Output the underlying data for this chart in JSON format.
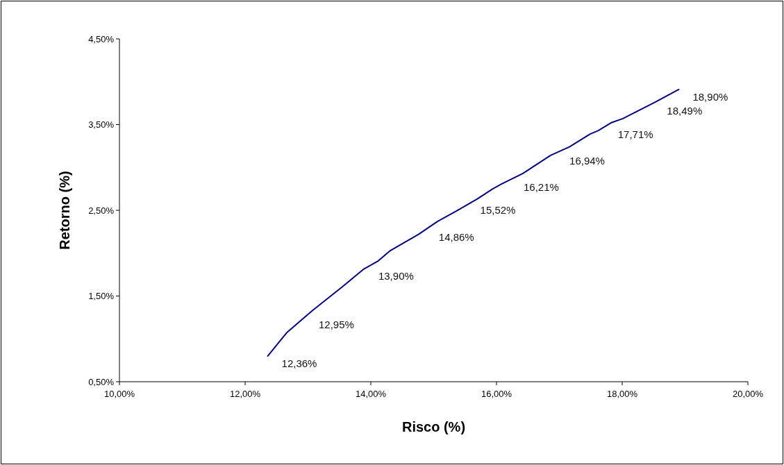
{
  "chart_data": {
    "type": "line",
    "xlabel": "Risco (%)",
    "ylabel": "Retorno (%)",
    "series": [
      {
        "color": "#000080",
        "x": [
          12.36,
          12.66,
          13.07,
          13.55,
          13.88,
          14.12,
          14.31,
          14.76,
          15.06,
          15.36,
          15.69,
          15.94,
          16.09,
          16.42,
          16.86,
          17.16,
          17.49,
          17.62,
          17.82,
          18.01,
          18.52,
          18.9
        ],
        "values": [
          0.8,
          1.07,
          1.33,
          1.61,
          1.81,
          1.91,
          2.03,
          2.22,
          2.37,
          2.49,
          2.63,
          2.75,
          2.81,
          2.93,
          3.14,
          3.24,
          3.39,
          3.43,
          3.52,
          3.57,
          3.76,
          3.91
        ]
      }
    ],
    "xlim": [
      10,
      20
    ],
    "ylim": [
      0.5,
      4.5
    ],
    "xticks": [
      {
        "value": 10,
        "label": "10,00%"
      },
      {
        "value": 12,
        "label": "12,00%"
      },
      {
        "value": 14,
        "label": "14,00%"
      },
      {
        "value": 16,
        "label": "16,00%"
      },
      {
        "value": 18,
        "label": "18,00%"
      },
      {
        "value": 20,
        "label": "20,00%"
      }
    ],
    "yticks": [
      {
        "value": 0.5,
        "label": "0,50%"
      },
      {
        "value": 1.5,
        "label": "1,50%"
      },
      {
        "value": 2.5,
        "label": "2,50%"
      },
      {
        "value": 3.5,
        "label": "3,50%"
      },
      {
        "value": 4.5,
        "label": "4,50%"
      }
    ],
    "grid": false,
    "marker": "none",
    "line_style": "solid",
    "annotations": [
      {
        "text": "12,36%",
        "x": 12.36,
        "y": 0.8
      },
      {
        "text": "12,95%",
        "x": 12.95,
        "y": 1.25
      },
      {
        "text": "13,90%",
        "x": 13.9,
        "y": 1.82
      },
      {
        "text": "14,86%",
        "x": 14.86,
        "y": 2.27
      },
      {
        "text": "15,52%",
        "x": 15.52,
        "y": 2.59
      },
      {
        "text": "16,21%",
        "x": 16.21,
        "y": 2.86
      },
      {
        "text": "16,94%",
        "x": 16.94,
        "y": 3.16
      },
      {
        "text": "17,71%",
        "x": 17.71,
        "y": 3.47
      },
      {
        "text": "18,49%",
        "x": 18.49,
        "y": 3.75
      },
      {
        "text": "18,90%",
        "x": 18.9,
        "y": 3.91
      }
    ]
  }
}
